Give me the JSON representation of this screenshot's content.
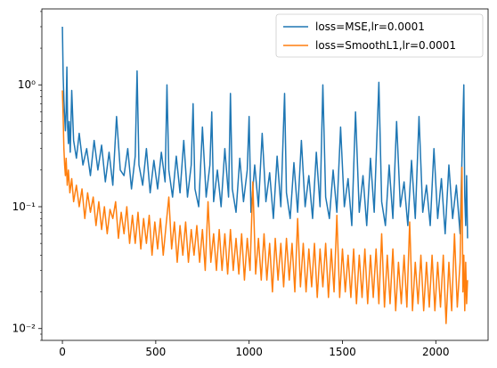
{
  "chart_data": {
    "type": "line",
    "title": "",
    "xlabel": "",
    "ylabel": "",
    "xlim": [
      -110,
      2280
    ],
    "ylim": [
      0.008,
      4.2
    ],
    "yscale": "log",
    "grid": false,
    "legend_position": "top-right",
    "x_ticks": [
      0,
      500,
      1000,
      1500,
      2000
    ],
    "x_tick_labels": [
      "0",
      "500",
      "1000",
      "1500",
      "2000"
    ],
    "y_ticks": [
      0.01,
      0.1,
      1
    ],
    "y_tick_labels": [
      "10⁻²",
      "10⁻¹",
      "10⁰"
    ],
    "series": [
      {
        "name": "loss=MSE,lr=0.0001",
        "color": "#1f77b4",
        "points": [
          [
            0,
            3.0
          ],
          [
            4,
            1.2
          ],
          [
            8,
            0.75
          ],
          [
            12,
            0.55
          ],
          [
            16,
            0.42
          ],
          [
            20,
            0.6
          ],
          [
            24,
            1.4
          ],
          [
            28,
            0.45
          ],
          [
            32,
            0.33
          ],
          [
            36,
            0.5
          ],
          [
            42,
            0.28
          ],
          [
            50,
            0.9
          ],
          [
            60,
            0.35
          ],
          [
            75,
            0.25
          ],
          [
            90,
            0.4
          ],
          [
            110,
            0.22
          ],
          [
            130,
            0.3
          ],
          [
            150,
            0.18
          ],
          [
            170,
            0.35
          ],
          [
            190,
            0.2
          ],
          [
            210,
            0.32
          ],
          [
            230,
            0.16
          ],
          [
            250,
            0.28
          ],
          [
            270,
            0.15
          ],
          [
            290,
            0.55
          ],
          [
            310,
            0.2
          ],
          [
            330,
            0.18
          ],
          [
            350,
            0.3
          ],
          [
            370,
            0.14
          ],
          [
            390,
            0.26
          ],
          [
            400,
            1.3
          ],
          [
            410,
            0.22
          ],
          [
            430,
            0.15
          ],
          [
            450,
            0.3
          ],
          [
            470,
            0.13
          ],
          [
            490,
            0.24
          ],
          [
            510,
            0.14
          ],
          [
            530,
            0.28
          ],
          [
            550,
            0.16
          ],
          [
            560,
            1.0
          ],
          [
            570,
            0.2
          ],
          [
            590,
            0.12
          ],
          [
            610,
            0.26
          ],
          [
            630,
            0.13
          ],
          [
            650,
            0.35
          ],
          [
            670,
            0.12
          ],
          [
            690,
            0.22
          ],
          [
            700,
            0.7
          ],
          [
            710,
            0.14
          ],
          [
            730,
            0.1
          ],
          [
            750,
            0.45
          ],
          [
            770,
            0.12
          ],
          [
            790,
            0.22
          ],
          [
            800,
            0.6
          ],
          [
            810,
            0.11
          ],
          [
            830,
            0.2
          ],
          [
            850,
            0.1
          ],
          [
            870,
            0.3
          ],
          [
            890,
            0.12
          ],
          [
            900,
            0.85
          ],
          [
            910,
            0.14
          ],
          [
            930,
            0.09
          ],
          [
            950,
            0.25
          ],
          [
            970,
            0.11
          ],
          [
            990,
            0.2
          ],
          [
            1000,
            0.55
          ],
          [
            1010,
            0.09
          ],
          [
            1030,
            0.22
          ],
          [
            1050,
            0.1
          ],
          [
            1070,
            0.4
          ],
          [
            1090,
            0.11
          ],
          [
            1110,
            0.19
          ],
          [
            1130,
            0.08
          ],
          [
            1150,
            0.26
          ],
          [
            1170,
            0.1
          ],
          [
            1190,
            0.85
          ],
          [
            1200,
            0.13
          ],
          [
            1220,
            0.08
          ],
          [
            1240,
            0.23
          ],
          [
            1260,
            0.09
          ],
          [
            1280,
            0.35
          ],
          [
            1300,
            0.1
          ],
          [
            1320,
            0.18
          ],
          [
            1340,
            0.08
          ],
          [
            1360,
            0.28
          ],
          [
            1380,
            0.1
          ],
          [
            1395,
            1.0
          ],
          [
            1410,
            0.12
          ],
          [
            1430,
            0.08
          ],
          [
            1450,
            0.2
          ],
          [
            1470,
            0.09
          ],
          [
            1490,
            0.45
          ],
          [
            1510,
            0.1
          ],
          [
            1530,
            0.17
          ],
          [
            1550,
            0.07
          ],
          [
            1570,
            0.6
          ],
          [
            1590,
            0.09
          ],
          [
            1610,
            0.18
          ],
          [
            1630,
            0.07
          ],
          [
            1650,
            0.25
          ],
          [
            1670,
            0.09
          ],
          [
            1695,
            1.05
          ],
          [
            1710,
            0.11
          ],
          [
            1730,
            0.07
          ],
          [
            1750,
            0.22
          ],
          [
            1770,
            0.08
          ],
          [
            1790,
            0.5
          ],
          [
            1810,
            0.1
          ],
          [
            1830,
            0.16
          ],
          [
            1850,
            0.07
          ],
          [
            1870,
            0.24
          ],
          [
            1890,
            0.08
          ],
          [
            1910,
            0.55
          ],
          [
            1930,
            0.09
          ],
          [
            1950,
            0.15
          ],
          [
            1970,
            0.07
          ],
          [
            1990,
            0.3
          ],
          [
            2010,
            0.08
          ],
          [
            2030,
            0.17
          ],
          [
            2050,
            0.06
          ],
          [
            2070,
            0.22
          ],
          [
            2090,
            0.08
          ],
          [
            2110,
            0.15
          ],
          [
            2130,
            0.06
          ],
          [
            2150,
            1.0
          ],
          [
            2155,
            0.12
          ],
          [
            2160,
            0.07
          ],
          [
            2165,
            0.18
          ],
          [
            2170,
            0.055
          ]
        ]
      },
      {
        "name": "loss=SmoothL1,lr=0.0001",
        "color": "#ff7f0e",
        "points": [
          [
            0,
            0.9
          ],
          [
            4,
            0.55
          ],
          [
            8,
            0.3
          ],
          [
            12,
            0.22
          ],
          [
            16,
            0.18
          ],
          [
            20,
            0.25
          ],
          [
            26,
            0.15
          ],
          [
            32,
            0.2
          ],
          [
            40,
            0.13
          ],
          [
            50,
            0.17
          ],
          [
            60,
            0.11
          ],
          [
            75,
            0.15
          ],
          [
            90,
            0.1
          ],
          [
            105,
            0.14
          ],
          [
            120,
            0.08
          ],
          [
            135,
            0.13
          ],
          [
            150,
            0.09
          ],
          [
            165,
            0.12
          ],
          [
            180,
            0.07
          ],
          [
            195,
            0.11
          ],
          [
            210,
            0.065
          ],
          [
            225,
            0.1
          ],
          [
            240,
            0.06
          ],
          [
            255,
            0.095
          ],
          [
            270,
            0.08
          ],
          [
            285,
            0.11
          ],
          [
            300,
            0.055
          ],
          [
            315,
            0.09
          ],
          [
            330,
            0.06
          ],
          [
            345,
            0.1
          ],
          [
            360,
            0.05
          ],
          [
            375,
            0.085
          ],
          [
            390,
            0.05
          ],
          [
            405,
            0.09
          ],
          [
            420,
            0.045
          ],
          [
            435,
            0.08
          ],
          [
            450,
            0.05
          ],
          [
            465,
            0.085
          ],
          [
            480,
            0.04
          ],
          [
            495,
            0.075
          ],
          [
            510,
            0.045
          ],
          [
            525,
            0.08
          ],
          [
            540,
            0.04
          ],
          [
            555,
            0.07
          ],
          [
            570,
            0.12
          ],
          [
            585,
            0.045
          ],
          [
            600,
            0.075
          ],
          [
            615,
            0.035
          ],
          [
            630,
            0.07
          ],
          [
            645,
            0.04
          ],
          [
            660,
            0.075
          ],
          [
            675,
            0.035
          ],
          [
            690,
            0.065
          ],
          [
            705,
            0.04
          ],
          [
            720,
            0.07
          ],
          [
            735,
            0.035
          ],
          [
            750,
            0.065
          ],
          [
            765,
            0.03
          ],
          [
            780,
            0.11
          ],
          [
            795,
            0.035
          ],
          [
            810,
            0.06
          ],
          [
            825,
            0.03
          ],
          [
            840,
            0.065
          ],
          [
            855,
            0.03
          ],
          [
            870,
            0.06
          ],
          [
            885,
            0.028
          ],
          [
            900,
            0.065
          ],
          [
            915,
            0.03
          ],
          [
            930,
            0.055
          ],
          [
            945,
            0.028
          ],
          [
            960,
            0.06
          ],
          [
            975,
            0.025
          ],
          [
            990,
            0.055
          ],
          [
            1005,
            0.03
          ],
          [
            1020,
            0.16
          ],
          [
            1035,
            0.028
          ],
          [
            1050,
            0.055
          ],
          [
            1065,
            0.025
          ],
          [
            1080,
            0.06
          ],
          [
            1095,
            0.025
          ],
          [
            1110,
            0.05
          ],
          [
            1125,
            0.02
          ],
          [
            1140,
            0.055
          ],
          [
            1155,
            0.025
          ],
          [
            1170,
            0.05
          ],
          [
            1185,
            0.022
          ],
          [
            1200,
            0.055
          ],
          [
            1215,
            0.025
          ],
          [
            1230,
            0.05
          ],
          [
            1245,
            0.02
          ],
          [
            1260,
            0.08
          ],
          [
            1275,
            0.022
          ],
          [
            1290,
            0.05
          ],
          [
            1305,
            0.02
          ],
          [
            1320,
            0.045
          ],
          [
            1335,
            0.022
          ],
          [
            1350,
            0.05
          ],
          [
            1365,
            0.018
          ],
          [
            1380,
            0.045
          ],
          [
            1395,
            0.022
          ],
          [
            1410,
            0.05
          ],
          [
            1425,
            0.018
          ],
          [
            1440,
            0.045
          ],
          [
            1455,
            0.02
          ],
          [
            1470,
            0.085
          ],
          [
            1485,
            0.018
          ],
          [
            1500,
            0.045
          ],
          [
            1515,
            0.02
          ],
          [
            1530,
            0.04
          ],
          [
            1545,
            0.018
          ],
          [
            1560,
            0.045
          ],
          [
            1575,
            0.016
          ],
          [
            1590,
            0.04
          ],
          [
            1605,
            0.018
          ],
          [
            1620,
            0.045
          ],
          [
            1635,
            0.016
          ],
          [
            1650,
            0.04
          ],
          [
            1665,
            0.018
          ],
          [
            1680,
            0.045
          ],
          [
            1695,
            0.016
          ],
          [
            1710,
            0.06
          ],
          [
            1725,
            0.015
          ],
          [
            1740,
            0.04
          ],
          [
            1755,
            0.016
          ],
          [
            1770,
            0.045
          ],
          [
            1785,
            0.014
          ],
          [
            1800,
            0.035
          ],
          [
            1815,
            0.016
          ],
          [
            1830,
            0.04
          ],
          [
            1845,
            0.015
          ],
          [
            1860,
            0.075
          ],
          [
            1875,
            0.014
          ],
          [
            1890,
            0.035
          ],
          [
            1905,
            0.016
          ],
          [
            1920,
            0.04
          ],
          [
            1935,
            0.014
          ],
          [
            1950,
            0.035
          ],
          [
            1965,
            0.015
          ],
          [
            1980,
            0.04
          ],
          [
            1995,
            0.014
          ],
          [
            2010,
            0.035
          ],
          [
            2025,
            0.015
          ],
          [
            2040,
            0.04
          ],
          [
            2055,
            0.011
          ],
          [
            2070,
            0.035
          ],
          [
            2085,
            0.014
          ],
          [
            2100,
            0.06
          ],
          [
            2115,
            0.015
          ],
          [
            2130,
            0.035
          ],
          [
            2140,
            0.21
          ],
          [
            2145,
            0.02
          ],
          [
            2150,
            0.04
          ],
          [
            2155,
            0.014
          ],
          [
            2160,
            0.035
          ],
          [
            2165,
            0.016
          ],
          [
            2170,
            0.025
          ]
        ]
      }
    ]
  }
}
